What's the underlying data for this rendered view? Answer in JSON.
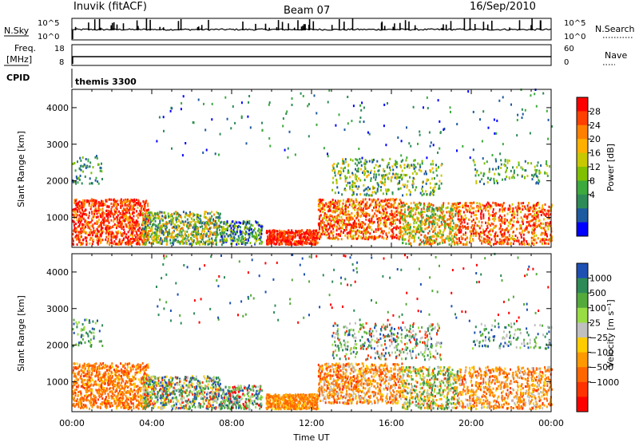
{
  "header": {
    "station": "Inuvik (fitACF)",
    "beam": "Beam 07",
    "date": "16/Sep/2010"
  },
  "top_panels": {
    "nsky_label": "N.Sky",
    "nsky_ticks": [
      "10^5",
      "10^0"
    ],
    "nsearch_label": "N.Search",
    "nsearch_ticks": [
      "10^5",
      "10^0"
    ],
    "freq_label_1": "Freq.",
    "freq_label_2": "[MHz]",
    "freq_ticks": [
      "18",
      "8"
    ],
    "nave_label": "Nave",
    "nave_ticks": [
      "60",
      "0"
    ],
    "cpid_label": "CPID",
    "cpid_value": "themis 3300"
  },
  "chart_data": [
    {
      "type": "heatmap",
      "panel": "power",
      "ylabel": "Slant Range [km]",
      "y_ticks": [
        1000,
        2000,
        3000,
        4000
      ],
      "ylim": [
        180,
        4500
      ],
      "x_ticks": [
        "00:00",
        "04:00",
        "08:00",
        "12:00",
        "16:00",
        "20:00",
        "00:00"
      ],
      "xlim_hours": [
        0,
        24
      ],
      "colorbar": {
        "label": "Power [dB]",
        "ticks": [
          "28",
          "24",
          "20",
          "16",
          "12",
          "8",
          "4"
        ],
        "colors": [
          "#ff0000",
          "#ff4000",
          "#ff8000",
          "#ffb000",
          "#c8c800",
          "#80c000",
          "#3caa3c",
          "#2e8b57",
          "#1e5aa0",
          "#0000ff"
        ]
      }
    },
    {
      "type": "heatmap",
      "panel": "velocity",
      "ylabel": "Slant Range [km]",
      "y_ticks": [
        1000,
        2000,
        3000,
        4000
      ],
      "ylim": [
        180,
        4500
      ],
      "x_ticks": [
        "00:00",
        "04:00",
        "08:00",
        "12:00",
        "16:00",
        "20:00",
        "00:00"
      ],
      "xlabel": "Time UT",
      "colorbar": {
        "label": "Velocity [m s⁻¹]",
        "ticks": [
          "1000",
          "500",
          "100",
          "25",
          "−25",
          "−100",
          "−500",
          "−1000"
        ],
        "colors": [
          "#1e50b4",
          "#2e8b57",
          "#55aa3c",
          "#99dd44",
          "#c0c0c0",
          "#ffcc00",
          "#ff9900",
          "#ff6600",
          "#ff3300",
          "#ff0000"
        ]
      }
    }
  ]
}
